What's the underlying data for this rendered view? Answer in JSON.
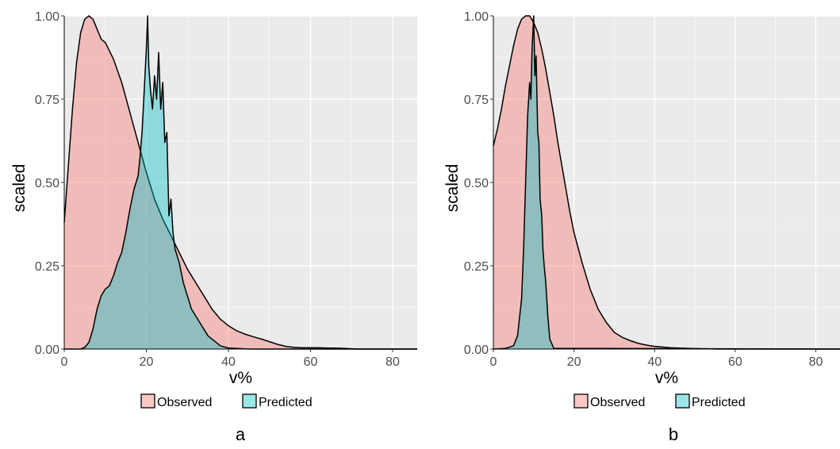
{
  "colors": {
    "observed": "#f8766d",
    "predicted": "#00bfc4",
    "panel_bg": "#ebebeb",
    "grid": "#ffffff",
    "line": "#000000"
  },
  "chart_data": [
    {
      "type": "area",
      "panel_label": "a",
      "xlabel": "v%",
      "ylabel": "scaled",
      "xlim": [
        0,
        86
      ],
      "ylim": [
        0,
        1
      ],
      "xticks": [
        0,
        20,
        40,
        60,
        80
      ],
      "yticks": [
        "0.00",
        "0.25",
        "0.50",
        "0.75",
        "1.00"
      ],
      "grid": true,
      "legend": {
        "position": "bottom",
        "entries": [
          "Observed",
          "Predicted"
        ]
      },
      "series": [
        {
          "name": "Observed",
          "color": "#f8766d",
          "x": [
            0,
            1,
            2,
            3,
            4,
            5,
            6,
            7,
            8,
            9,
            10,
            12,
            14,
            16,
            18,
            20,
            22,
            24,
            26,
            28,
            30,
            32,
            34,
            36,
            38,
            40,
            42,
            44,
            46,
            48,
            50,
            52,
            54,
            56,
            58,
            60,
            62,
            64,
            66,
            68,
            70,
            72,
            74,
            76,
            78,
            80,
            82,
            86
          ],
          "y": [
            0.38,
            0.55,
            0.72,
            0.86,
            0.95,
            0.99,
            1.0,
            0.99,
            0.96,
            0.93,
            0.92,
            0.87,
            0.8,
            0.71,
            0.62,
            0.53,
            0.45,
            0.39,
            0.34,
            0.29,
            0.24,
            0.2,
            0.16,
            0.12,
            0.09,
            0.07,
            0.055,
            0.045,
            0.037,
            0.03,
            0.022,
            0.014,
            0.008,
            0.005,
            0.004,
            0.004,
            0.004,
            0.003,
            0.003,
            0.002,
            0.001,
            0.0,
            0.0,
            0.0,
            0.0,
            0.0,
            0.0,
            0.0
          ]
        },
        {
          "name": "Predicted",
          "color": "#00bfc4",
          "x": [
            0,
            4,
            5,
            6,
            7,
            8,
            9,
            10,
            11,
            12,
            13,
            14,
            15,
            16,
            17,
            18,
            18.5,
            19,
            19.5,
            20,
            20.3,
            20.6,
            21,
            21.5,
            22,
            22.5,
            23,
            23.5,
            24,
            24.5,
            25,
            25.5,
            26,
            26.5,
            27,
            28,
            29,
            30,
            31,
            32,
            33,
            34,
            35,
            36,
            37,
            38,
            40,
            45,
            50,
            86
          ],
          "y": [
            0.0,
            0.0,
            0.005,
            0.02,
            0.06,
            0.12,
            0.16,
            0.18,
            0.19,
            0.22,
            0.26,
            0.29,
            0.35,
            0.42,
            0.48,
            0.52,
            0.58,
            0.66,
            0.78,
            0.9,
            1.0,
            0.85,
            0.78,
            0.72,
            0.82,
            0.75,
            0.89,
            0.72,
            0.8,
            0.62,
            0.65,
            0.4,
            0.45,
            0.35,
            0.3,
            0.26,
            0.2,
            0.16,
            0.12,
            0.1,
            0.08,
            0.06,
            0.04,
            0.03,
            0.02,
            0.01,
            0.003,
            0.0,
            0.0,
            0.0
          ]
        }
      ]
    },
    {
      "type": "area",
      "panel_label": "b",
      "xlabel": "v%",
      "ylabel": "scaled",
      "xlim": [
        0,
        86
      ],
      "ylim": [
        0,
        1
      ],
      "xticks": [
        0,
        20,
        40,
        60,
        80
      ],
      "yticks": [
        "0.00",
        "0.25",
        "0.50",
        "0.75",
        "1.00"
      ],
      "grid": true,
      "legend": {
        "position": "bottom",
        "entries": [
          "Observed",
          "Predicted"
        ]
      },
      "series": [
        {
          "name": "Observed",
          "color": "#f8766d",
          "x": [
            0,
            1,
            2,
            3,
            4,
            5,
            6,
            7,
            8,
            9,
            10,
            11,
            12,
            13,
            14,
            15,
            16,
            17,
            18,
            19,
            20,
            22,
            24,
            26,
            28,
            30,
            32,
            34,
            36,
            38,
            40,
            44,
            48,
            52,
            56,
            60,
            70,
            80,
            86
          ],
          "y": [
            0.61,
            0.66,
            0.72,
            0.79,
            0.85,
            0.91,
            0.96,
            0.99,
            1.0,
            1.0,
            0.98,
            0.95,
            0.9,
            0.84,
            0.77,
            0.7,
            0.62,
            0.55,
            0.48,
            0.41,
            0.35,
            0.26,
            0.18,
            0.12,
            0.08,
            0.05,
            0.035,
            0.025,
            0.017,
            0.012,
            0.008,
            0.004,
            0.002,
            0.001,
            0.0,
            0.0,
            0.0,
            0.0,
            0.0
          ]
        },
        {
          "name": "Predicted",
          "color": "#00bfc4",
          "x": [
            0,
            3,
            5,
            6,
            7,
            7.5,
            8,
            8.5,
            9,
            9.3,
            9.6,
            10,
            10.3,
            10.6,
            11,
            11.3,
            11.6,
            12,
            12.3,
            12.6,
            13,
            13.5,
            14,
            15,
            86
          ],
          "y": [
            0.0,
            0.002,
            0.01,
            0.04,
            0.15,
            0.3,
            0.5,
            0.7,
            0.8,
            0.75,
            0.9,
            1.0,
            0.82,
            0.88,
            0.65,
            0.62,
            0.45,
            0.4,
            0.3,
            0.25,
            0.2,
            0.1,
            0.03,
            0.002,
            0.0
          ]
        }
      ]
    }
  ]
}
